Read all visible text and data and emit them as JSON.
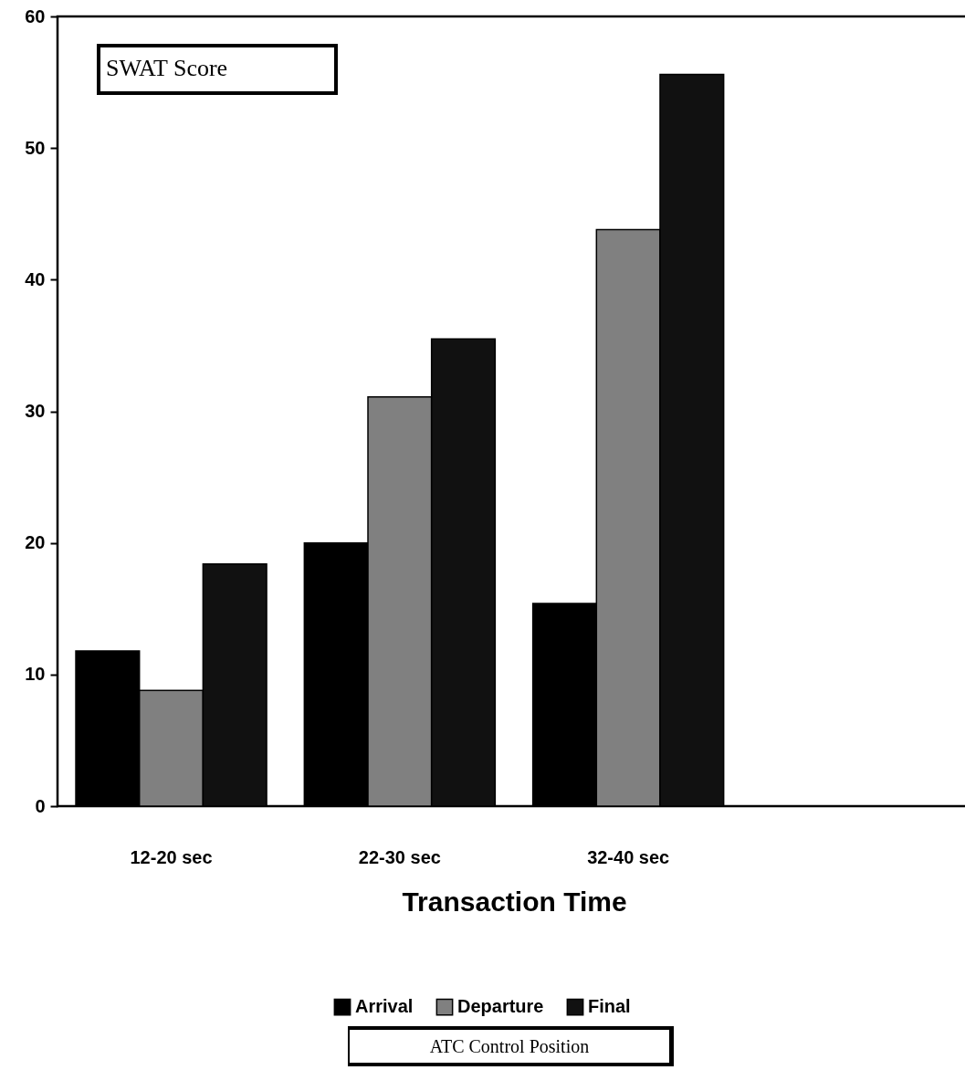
{
  "chart_data": {
    "type": "bar",
    "ylabel": "SWAT Score",
    "xlabel": "Transaction Time",
    "legend_title": "ATC Control Position",
    "categories": [
      "12-20 sec",
      "22-30 sec",
      "32-40 sec",
      null
    ],
    "series": [
      {
        "name": "Arrival",
        "color": "#000000",
        "values": [
          11.8,
          20.0,
          15.4,
          null
        ]
      },
      {
        "name": "Departure",
        "color": "#808080",
        "values": [
          8.8,
          31.1,
          43.8,
          null
        ]
      },
      {
        "name": "Final",
        "color": "#111111",
        "values": [
          18.4,
          35.5,
          55.6,
          null
        ]
      }
    ],
    "ylim": [
      0,
      60
    ],
    "yticks": [
      0,
      10,
      20,
      30,
      40,
      50,
      60
    ],
    "legend": "bottom"
  }
}
